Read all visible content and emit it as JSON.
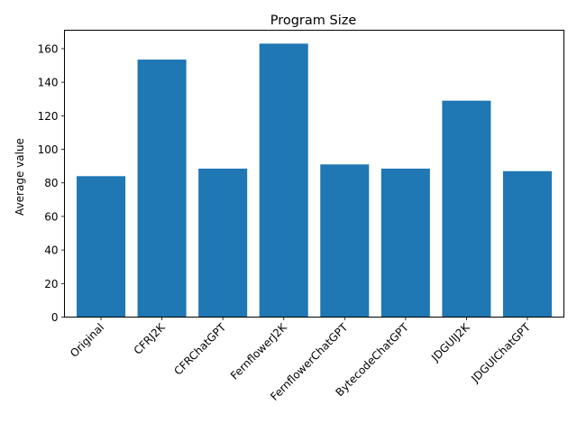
{
  "chart_data": {
    "type": "bar",
    "title": "Program Size",
    "xlabel": "",
    "ylabel": "Average value",
    "categories": [
      "Original",
      "CFRJ2K",
      "CFRChatGPT",
      "FernflowerJ2K",
      "FernflowerChatGPT",
      "BytecodeChatGPT",
      "JDGUIJ2K",
      "JDGUIChatGPT"
    ],
    "values": [
      84,
      153.5,
      88.5,
      163,
      91,
      88.5,
      129,
      87
    ],
    "ylim": [
      0,
      171
    ],
    "yticks": [
      0,
      20,
      40,
      60,
      80,
      100,
      120,
      140,
      160
    ],
    "bar_color": "#1f77b4",
    "grid": false,
    "legend": "none"
  }
}
